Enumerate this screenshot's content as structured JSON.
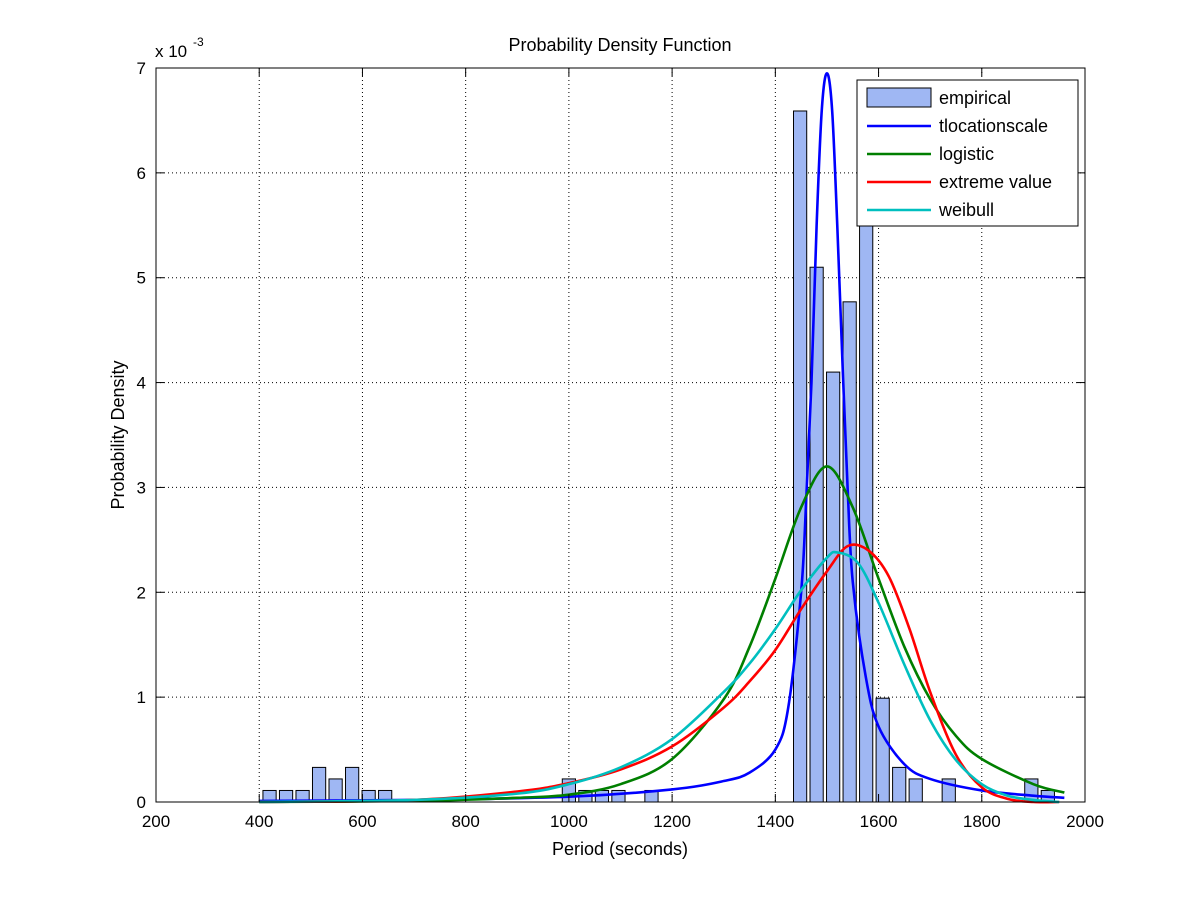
{
  "chart_data": {
    "type": "bar+line",
    "title": "Probability Density Function",
    "xlabel": "Period (seconds)",
    "ylabel": "Probability Density",
    "y_exponent_label": "x 10",
    "y_exponent_power": "-3",
    "xlim": [
      200,
      2000
    ],
    "ylim": [
      0,
      7
    ],
    "y_scale": 0.001,
    "grid": true,
    "legend_location": "top-right",
    "x_ticks": [
      200,
      400,
      600,
      800,
      1000,
      1200,
      1400,
      1600,
      1800,
      2000
    ],
    "y_ticks": [
      0,
      1,
      2,
      3,
      4,
      5,
      6,
      7
    ],
    "histogram": {
      "name": "empirical",
      "color": "#9FB7F3",
      "edge_color": "#000000",
      "bin_width": 32,
      "bins": [
        {
          "center": 420,
          "value": 0.11
        },
        {
          "center": 452,
          "value": 0.11
        },
        {
          "center": 484,
          "value": 0.11
        },
        {
          "center": 516,
          "value": 0.33
        },
        {
          "center": 548,
          "value": 0.22
        },
        {
          "center": 580,
          "value": 0.33
        },
        {
          "center": 612,
          "value": 0.11
        },
        {
          "center": 644,
          "value": 0.11
        },
        {
          "center": 1000,
          "value": 0.22
        },
        {
          "center": 1032,
          "value": 0.11
        },
        {
          "center": 1064,
          "value": 0.11
        },
        {
          "center": 1096,
          "value": 0.11
        },
        {
          "center": 1160,
          "value": 0.11
        },
        {
          "center": 1448,
          "value": 6.59
        },
        {
          "center": 1480,
          "value": 5.1
        },
        {
          "center": 1512,
          "value": 4.1
        },
        {
          "center": 1544,
          "value": 4.77
        },
        {
          "center": 1576,
          "value": 5.6
        },
        {
          "center": 1608,
          "value": 0.99
        },
        {
          "center": 1640,
          "value": 0.33
        },
        {
          "center": 1672,
          "value": 0.22
        },
        {
          "center": 1736,
          "value": 0.22
        },
        {
          "center": 1896,
          "value": 0.22
        },
        {
          "center": 1928,
          "value": 0.11
        }
      ]
    },
    "series": [
      {
        "name": "tlocationscale",
        "color": "#0000FF",
        "x": [
          400,
          700,
          1000,
          1200,
          1300,
          1350,
          1400,
          1425,
          1450,
          1460,
          1470,
          1480,
          1490,
          1500,
          1510,
          1520,
          1530,
          1540,
          1550,
          1575,
          1600,
          1650,
          1700,
          1800,
          1900,
          1960
        ],
        "y": [
          0.01,
          0.02,
          0.05,
          0.12,
          0.2,
          0.28,
          0.5,
          0.9,
          2.0,
          2.9,
          4.0,
          5.5,
          6.6,
          6.95,
          6.6,
          5.5,
          4.2,
          3.0,
          2.1,
          1.2,
          0.72,
          0.36,
          0.22,
          0.11,
          0.06,
          0.04
        ]
      },
      {
        "name": "logistic",
        "color": "#007F00",
        "x": [
          400,
          700,
          900,
          1000,
          1100,
          1200,
          1300,
          1350,
          1400,
          1450,
          1500,
          1550,
          1600,
          1650,
          1700,
          1750,
          1800,
          1900,
          1960
        ],
        "y": [
          0.0,
          0.01,
          0.04,
          0.07,
          0.17,
          0.41,
          0.98,
          1.48,
          2.13,
          2.81,
          3.2,
          2.81,
          2.13,
          1.48,
          0.98,
          0.63,
          0.41,
          0.17,
          0.09
        ]
      },
      {
        "name": "extreme value",
        "color": "#FF0000",
        "x": [
          400,
          700,
          900,
          1000,
          1100,
          1200,
          1300,
          1350,
          1400,
          1450,
          1500,
          1540,
          1580,
          1620,
          1660,
          1700,
          1750,
          1800,
          1850,
          1900,
          1950
        ],
        "y": [
          0.0,
          0.02,
          0.1,
          0.18,
          0.31,
          0.53,
          0.9,
          1.15,
          1.45,
          1.84,
          2.2,
          2.44,
          2.4,
          2.15,
          1.65,
          1.05,
          0.45,
          0.14,
          0.03,
          0.0,
          0.0
        ]
      },
      {
        "name": "weibull",
        "color": "#00BFBF",
        "x": [
          400,
          700,
          900,
          1000,
          1100,
          1200,
          1300,
          1350,
          1400,
          1450,
          1500,
          1520,
          1560,
          1600,
          1650,
          1700,
          1750,
          1800,
          1850,
          1900,
          1950
        ],
        "y": [
          0.0,
          0.02,
          0.08,
          0.17,
          0.33,
          0.6,
          1.05,
          1.32,
          1.65,
          2.02,
          2.33,
          2.38,
          2.28,
          1.9,
          1.31,
          0.78,
          0.4,
          0.17,
          0.06,
          0.02,
          0.0
        ]
      }
    ]
  }
}
